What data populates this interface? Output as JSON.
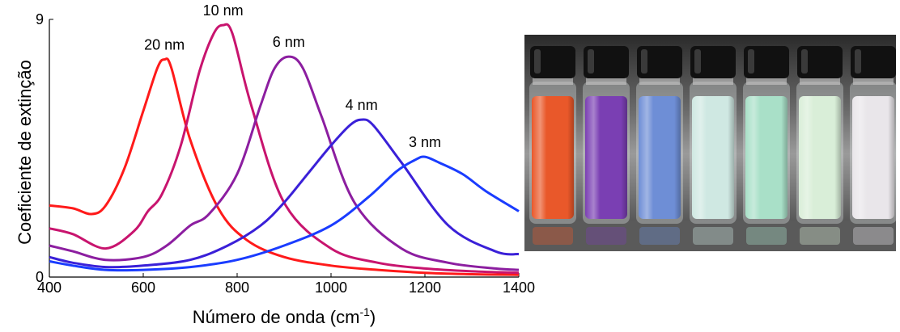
{
  "chart_data": {
    "type": "line",
    "title": "",
    "xlabel": "Número de onda (cm",
    "xlabel_sup": "-1",
    "xlabel_tail": ")",
    "ylabel": "Coeficiente de extinção",
    "xlim": [
      400,
      1400
    ],
    "ylim": [
      0,
      9
    ],
    "x_ticks": [
      "400",
      "600",
      "800",
      "1000",
      "1200",
      "1400"
    ],
    "y_ticks": [
      "0",
      "9"
    ],
    "grid": false,
    "legend": "none",
    "series": [
      {
        "name": "20 nm",
        "color": "#ff1a1a",
        "x": [
          400,
          450,
          490,
          520,
          560,
          600,
          630,
          645,
          660,
          700,
          760,
          820,
          900,
          1000,
          1100,
          1200,
          1300,
          1400
        ],
        "y": [
          2.5,
          2.4,
          2.2,
          2.5,
          3.8,
          5.8,
          7.3,
          7.6,
          7.3,
          4.8,
          2.4,
          1.3,
          0.7,
          0.4,
          0.25,
          0.15,
          0.1,
          0.08
        ]
      },
      {
        "name": "10 nm",
        "color": "#c8146e",
        "x": [
          400,
          450,
          520,
          580,
          610,
          640,
          680,
          720,
          750,
          770,
          790,
          830,
          900,
          1000,
          1100,
          1200,
          1300,
          1400
        ],
        "y": [
          1.7,
          1.5,
          1.0,
          1.6,
          2.3,
          2.9,
          4.6,
          7.2,
          8.5,
          8.8,
          8.5,
          6.0,
          2.6,
          1.0,
          0.5,
          0.3,
          0.2,
          0.15
        ]
      },
      {
        "name": "6 nm",
        "color": "#8c1ea0",
        "x": [
          400,
          450,
          520,
          600,
          650,
          700,
          740,
          800,
          850,
          880,
          910,
          940,
          980,
          1050,
          1150,
          1250,
          1350,
          1400
        ],
        "y": [
          1.1,
          0.9,
          0.6,
          0.7,
          1.1,
          1.8,
          2.2,
          3.6,
          6.0,
          7.3,
          7.7,
          7.3,
          5.6,
          2.6,
          1.0,
          0.5,
          0.3,
          0.25
        ]
      },
      {
        "name": "4 nm",
        "color": "#3a20d8",
        "x": [
          400,
          450,
          520,
          600,
          700,
          780,
          850,
          900,
          950,
          1000,
          1040,
          1065,
          1090,
          1150,
          1250,
          1350,
          1400
        ],
        "y": [
          0.7,
          0.5,
          0.35,
          0.4,
          0.6,
          1.1,
          1.8,
          2.6,
          3.6,
          4.6,
          5.3,
          5.5,
          5.3,
          4.0,
          1.8,
          0.9,
          0.8
        ]
      },
      {
        "name": "3 nm",
        "color": "#1a3cff",
        "x": [
          400,
          450,
          520,
          600,
          700,
          800,
          900,
          1000,
          1080,
          1140,
          1180,
          1200,
          1230,
          1280,
          1330,
          1400
        ],
        "y": [
          0.55,
          0.4,
          0.25,
          0.25,
          0.35,
          0.6,
          1.1,
          1.8,
          2.8,
          3.7,
          4.1,
          4.2,
          4.0,
          3.6,
          3.0,
          2.3
        ]
      }
    ]
  },
  "photo": {
    "vial_colors": [
      "#e9582a",
      "#7a3fb3",
      "#6e8ed6",
      "#cfe8e2",
      "#a9e0c8",
      "#d9eed8",
      "#e9e6ea"
    ]
  }
}
